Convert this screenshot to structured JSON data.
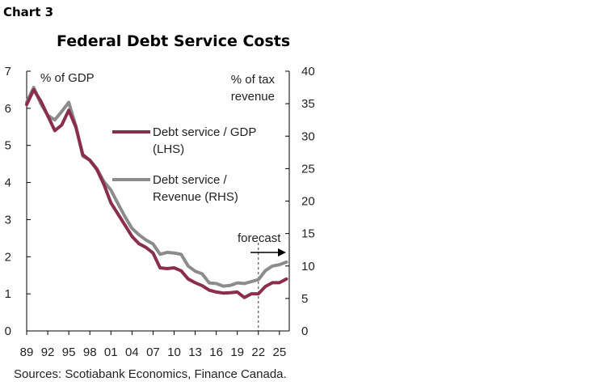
{
  "chart_label": "Chart 3",
  "source": "Sources: Scotiabank Economics, Finance Canada.",
  "colors": {
    "gdp_series": "#8b2e4c",
    "revenue_series": "#8c8c8c",
    "axis": "#000000"
  },
  "chart_data": {
    "type": "line",
    "title": "Federal Debt Service Costs",
    "ylabel_left": "% of GDP",
    "ylabel_right": [
      "% of tax",
      "revenue"
    ],
    "ylim_left": [
      0,
      7
    ],
    "ylim_right": [
      0,
      40
    ],
    "yticks_left": [
      0,
      1,
      2,
      3,
      4,
      5,
      6,
      7
    ],
    "yticks_right": [
      0,
      5,
      10,
      15,
      20,
      25,
      30,
      35,
      40
    ],
    "xticks": [
      "89",
      "92",
      "95",
      "98",
      "01",
      "04",
      "07",
      "10",
      "13",
      "16",
      "19",
      "22",
      "25"
    ],
    "x": [
      1989,
      1990,
      1991,
      1992,
      1993,
      1994,
      1995,
      1996,
      1997,
      1998,
      1999,
      2000,
      2001,
      2002,
      2003,
      2004,
      2005,
      2006,
      2007,
      2008,
      2009,
      2010,
      2011,
      2012,
      2013,
      2014,
      2015,
      2016,
      2017,
      2018,
      2019,
      2020,
      2021,
      2022,
      2023,
      2024,
      2025,
      2026
    ],
    "series": [
      {
        "name": "Debt service / GDP (LHS)",
        "legend": [
          "Debt service / GDP",
          "(LHS)"
        ],
        "axis": "left",
        "values": [
          6.1,
          6.5,
          6.2,
          5.8,
          5.4,
          5.55,
          5.95,
          5.5,
          4.75,
          4.6,
          4.35,
          3.95,
          3.45,
          3.15,
          2.85,
          2.55,
          2.35,
          2.25,
          2.1,
          1.7,
          1.68,
          1.7,
          1.62,
          1.4,
          1.3,
          1.22,
          1.1,
          1.05,
          1.02,
          1.03,
          1.05,
          0.9,
          1.0,
          1.0,
          1.2,
          1.3,
          1.3,
          1.4
        ]
      },
      {
        "name": "Debt service / Revenue (RHS)",
        "legend": [
          "Debt service /",
          "Revenue (RHS)"
        ],
        "axis": "right",
        "values": [
          35.2,
          37.5,
          35.0,
          33.2,
          32.5,
          33.8,
          35.2,
          31.6,
          26.9,
          26.3,
          25.0,
          23.0,
          21.7,
          19.6,
          17.6,
          15.8,
          14.8,
          14.0,
          13.4,
          11.8,
          12.1,
          12.0,
          11.8,
          10.0,
          9.2,
          8.8,
          7.4,
          7.3,
          6.9,
          7.0,
          7.4,
          7.3,
          7.6,
          7.9,
          9.3,
          10.0,
          10.2,
          10.6
        ]
      }
    ],
    "annotation": {
      "text": "forecast",
      "at_x": 2022
    }
  }
}
